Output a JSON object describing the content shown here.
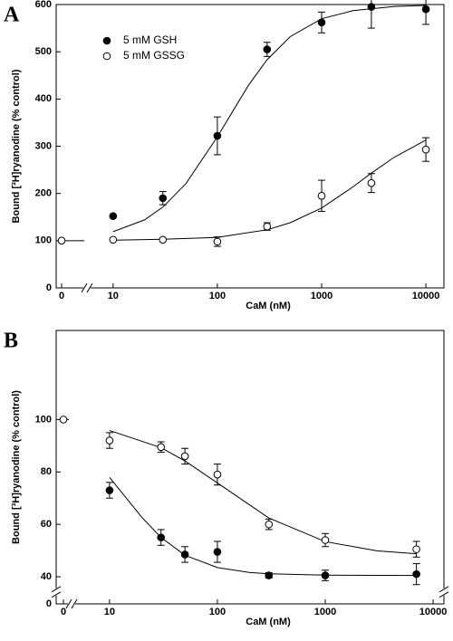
{
  "chart_data": [
    {
      "type": "scatter",
      "panel": "A",
      "xlabel": "CaM (nM)",
      "ylabel": "Bound [³H]ryanodine (% control)",
      "xscale": "log",
      "axis_break": "x",
      "xlim": [
        7,
        14900
      ],
      "xticks": [
        0,
        10,
        100,
        1000,
        10000
      ],
      "ylim": [
        0,
        600
      ],
      "yticks": [
        0,
        100,
        200,
        300,
        400,
        500,
        600
      ],
      "legend": "upper left",
      "series": [
        {
          "name": "5 mM GSH",
          "marker": "filled",
          "color": "#000000",
          "x": [
            10,
            30,
            100,
            300,
            1000,
            3000,
            10000
          ],
          "values": [
            152,
            190,
            322,
            505,
            562,
            595,
            590
          ],
          "errors": [
            null,
            14,
            40,
            15,
            22,
            45,
            32
          ]
        },
        {
          "name": "5 mM GSSG",
          "marker": "open",
          "color": "#000000",
          "x": [
            0,
            10,
            30,
            100,
            300,
            1000,
            3000,
            10000
          ],
          "values": [
            100,
            102,
            102,
            98,
            130,
            195,
            222,
            293
          ],
          "errors": [
            null,
            null,
            null,
            10,
            8,
            33,
            20,
            25
          ]
        }
      ],
      "fits": [
        {
          "x": [
            10,
            20,
            30,
            50,
            100,
            200,
            300,
            500,
            1000,
            2000,
            5000,
            10000
          ],
          "values": [
            119,
            144,
            171,
            221,
            320,
            430,
            483,
            532,
            570,
            587,
            596,
            598
          ]
        },
        {
          "x": [
            10,
            30,
            100,
            300,
            500,
            1000,
            2000,
            3000,
            5000,
            10000
          ],
          "values": [
            101,
            103,
            107,
            123,
            138,
            169,
            214,
            243,
            277,
            313
          ]
        }
      ]
    },
    {
      "type": "scatter",
      "panel": "B",
      "xlabel": "CaM (nM)",
      "ylabel": "Bound [³H]ryanodine (% control)",
      "xscale": "log",
      "axis_break": "xy",
      "xlim": [
        5.5,
        12600
      ],
      "xticks": [
        0,
        10,
        100,
        1000,
        10000
      ],
      "ylim": [
        36,
        134
      ],
      "yticks": [
        0,
        40,
        60,
        80,
        100
      ],
      "series": [
        {
          "marker": "open",
          "color": "#000000",
          "x": [
            0,
            10,
            30,
            50,
            100,
            300,
            1000,
            7000
          ],
          "values": [
            100,
            92,
            89.5,
            86,
            79,
            60,
            54,
            50.5
          ],
          "errors": [
            null,
            3,
            2,
            3,
            4,
            2,
            2.5,
            3
          ]
        },
        {
          "marker": "filled",
          "color": "#000000",
          "x": [
            10,
            30,
            50,
            100,
            300,
            1000,
            7000
          ],
          "values": [
            73,
            55,
            48.5,
            49.5,
            40.5,
            40.5,
            41
          ],
          "errors": [
            3,
            3,
            3,
            4,
            1,
            2,
            4
          ]
        }
      ],
      "fits": [
        {
          "x": [
            10,
            30,
            50,
            100,
            300,
            1000,
            3000,
            7000
          ],
          "values": [
            95.8,
            89.3,
            84.2,
            75.8,
            62.4,
            53.4,
            49.9,
            48.8
          ]
        },
        {
          "x": [
            10,
            20,
            30,
            50,
            100,
            200,
            300,
            1000,
            7000
          ],
          "values": [
            77.9,
            62.6,
            55,
            48.2,
            43.5,
            41.6,
            41.1,
            40.6,
            40.5
          ]
        }
      ]
    }
  ]
}
